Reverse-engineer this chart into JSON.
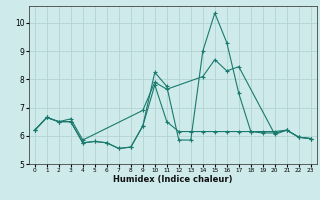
{
  "xlabel": "Humidex (Indice chaleur)",
  "bg_color": "#ceeaea",
  "line_color": "#1a7a6e",
  "grid_color": "#aed0d0",
  "xlim": [
    -0.5,
    23.5
  ],
  "ylim": [
    5.0,
    10.6
  ],
  "yticks": [
    5,
    6,
    7,
    8,
    9,
    10
  ],
  "xticks": [
    0,
    1,
    2,
    3,
    4,
    5,
    6,
    7,
    8,
    9,
    10,
    11,
    12,
    13,
    14,
    15,
    16,
    17,
    18,
    19,
    20,
    21,
    22,
    23
  ],
  "series1_x": [
    0,
    1,
    2,
    3,
    4,
    5,
    6,
    7,
    8,
    9,
    10,
    11,
    12,
    13,
    14,
    15,
    16,
    17,
    18,
    19,
    20,
    21,
    22,
    23
  ],
  "series1_y": [
    6.2,
    6.65,
    6.5,
    6.5,
    5.75,
    5.8,
    5.75,
    5.55,
    5.6,
    6.35,
    8.25,
    7.75,
    5.85,
    5.85,
    9.0,
    10.35,
    9.3,
    7.5,
    6.15,
    6.1,
    6.1,
    6.2,
    5.95,
    5.9
  ],
  "series2_x": [
    0,
    1,
    2,
    3,
    4,
    5,
    6,
    7,
    8,
    9,
    10,
    11,
    12,
    13,
    14,
    15,
    16,
    17,
    18,
    19,
    20,
    21,
    22,
    23
  ],
  "series2_y": [
    6.2,
    6.65,
    6.5,
    6.5,
    5.75,
    5.8,
    5.75,
    5.55,
    5.6,
    6.35,
    7.8,
    6.5,
    6.15,
    6.15,
    6.15,
    6.15,
    6.15,
    6.15,
    6.15,
    6.15,
    6.15,
    6.2,
    5.95,
    5.9
  ],
  "series3_x": [
    0,
    1,
    2,
    3,
    4,
    9,
    10,
    11,
    14,
    15,
    16,
    17,
    20,
    21,
    22,
    23
  ],
  "series3_y": [
    6.2,
    6.65,
    6.5,
    6.6,
    5.85,
    6.9,
    7.9,
    7.65,
    8.1,
    8.7,
    8.3,
    8.45,
    6.05,
    6.2,
    5.95,
    5.9
  ]
}
